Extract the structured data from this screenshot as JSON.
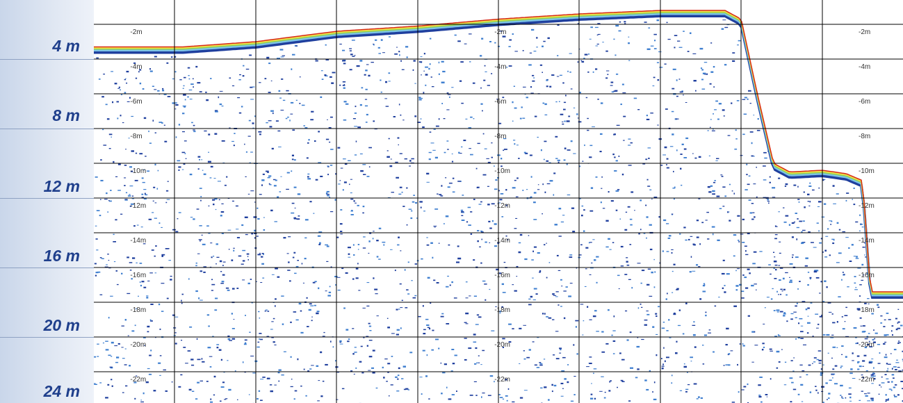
{
  "side_scale": {
    "labels": [
      "4 m",
      "8 m",
      "12 m",
      "16 m",
      "20 m",
      "24 m"
    ]
  },
  "chart_data": {
    "type": "heatmap",
    "title": "",
    "ylabel": "",
    "ylim": [
      0,
      24
    ],
    "y_ticks": [
      "-2m",
      "-4m",
      "-6m",
      "-8m",
      "-10m",
      "-12m",
      "-14m",
      "-16m",
      "-18m",
      "-20m",
      "-22m"
    ],
    "tick_columns": 3,
    "bottom_profile": {
      "x_fraction": [
        0.0,
        0.11,
        0.2,
        0.3,
        0.4,
        0.5,
        0.6,
        0.7,
        0.78,
        0.8,
        0.82,
        0.84,
        0.86,
        0.9,
        0.93,
        0.95,
        0.96,
        0.99,
        1.0
      ],
      "depth_m": [
        3.3,
        3.3,
        3.0,
        2.4,
        2.1,
        1.7,
        1.4,
        1.2,
        1.2,
        1.7,
        6.0,
        10.0,
        10.5,
        10.4,
        10.6,
        11.0,
        17.4,
        17.4,
        17.4
      ]
    },
    "color_scale": [
      "#1f3f9e",
      "#3f7fd0",
      "#7cc2e6",
      "#8fd14f",
      "#f1e04a",
      "#f39a2a",
      "#d62a16"
    ]
  }
}
